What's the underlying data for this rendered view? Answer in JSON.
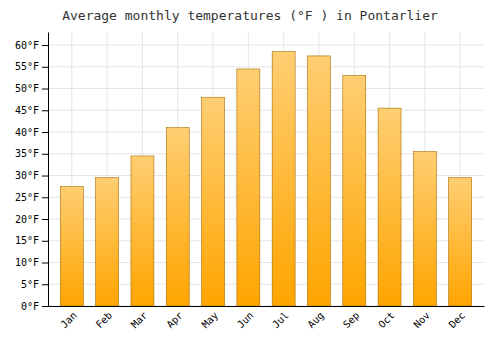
{
  "chart_data": {
    "type": "bar",
    "title": "Average monthly temperatures (°F ) in Pontarlier",
    "categories": [
      "Jan",
      "Feb",
      "Mar",
      "Apr",
      "May",
      "Jun",
      "Jul",
      "Aug",
      "Sep",
      "Oct",
      "Nov",
      "Dec"
    ],
    "values": [
      27.5,
      29.5,
      34.5,
      41.0,
      48.0,
      54.5,
      58.5,
      57.5,
      53.0,
      45.5,
      35.5,
      29.5
    ],
    "color": "#FFA500",
    "ylim": [
      0,
      63
    ],
    "yticks": [
      {
        "value": 0,
        "label": "0°F"
      },
      {
        "value": 5,
        "label": "5°F"
      },
      {
        "value": 10,
        "label": "10°F"
      },
      {
        "value": 15,
        "label": "15°F"
      },
      {
        "value": 20,
        "label": "20°F"
      },
      {
        "value": 25,
        "label": "25°F"
      },
      {
        "value": 30,
        "label": "30°F"
      },
      {
        "value": 35,
        "label": "35°F"
      },
      {
        "value": 40,
        "label": "40°F"
      },
      {
        "value": 45,
        "label": "45°F"
      },
      {
        "value": 50,
        "label": "50°F"
      },
      {
        "value": 55,
        "label": "55°F"
      },
      {
        "value": 60,
        "label": "60°F"
      }
    ],
    "grid": true
  }
}
